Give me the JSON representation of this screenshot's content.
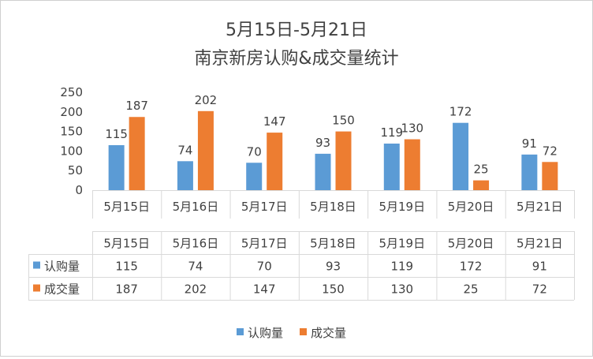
{
  "chart_data": {
    "type": "bar",
    "title": "5月15日-5月21日",
    "subtitle": "南京新房认购&成交量统计",
    "categories": [
      "5月15日",
      "5月16日",
      "5月17日",
      "5月18日",
      "5月19日",
      "5月20日",
      "5月21日"
    ],
    "series": [
      {
        "name": "认购量",
        "color": "#5b9bd5",
        "values": [
          115,
          74,
          70,
          93,
          119,
          172,
          91
        ]
      },
      {
        "name": "成交量",
        "color": "#ed7d31",
        "values": [
          187,
          202,
          147,
          150,
          130,
          25,
          72
        ]
      }
    ],
    "ylim": [
      0,
      250
    ],
    "yticks": [
      0,
      50,
      100,
      150,
      200,
      250
    ],
    "grid": false,
    "data_labels": true,
    "data_table": true,
    "legend": "bottom"
  }
}
